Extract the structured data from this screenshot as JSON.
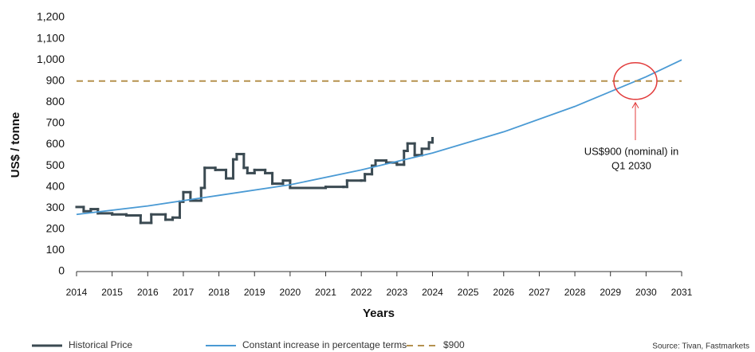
{
  "chart_data": {
    "type": "line",
    "y_label": "US$ / tonne",
    "x_label": "Years",
    "source": "Source: Tivan, Fastmarkets",
    "xlim": [
      2014,
      2031
    ],
    "xticks": [
      2014,
      2015,
      2016,
      2017,
      2018,
      2019,
      2020,
      2021,
      2022,
      2023,
      2024,
      2025,
      2026,
      2027,
      2028,
      2029,
      2030,
      2031
    ],
    "ylim": [
      0,
      1200
    ],
    "yticks": [
      0,
      100,
      200,
      300,
      400,
      500,
      600,
      700,
      800,
      900,
      {
        "value": 1000,
        "label": "1,000"
      },
      {
        "value": 1100,
        "label": "1,100"
      },
      {
        "value": 1200,
        "label": "1,200"
      }
    ],
    "grid": false,
    "legend": "bottom",
    "series": [
      {
        "name": "Historical Price",
        "color": "#3b4a52",
        "step": true,
        "dash": false,
        "x": [
          2014.0,
          2014.2,
          2014.4,
          2014.6,
          2015.0,
          2015.4,
          2015.8,
          2016.1,
          2016.5,
          2016.7,
          2016.9,
          2017.0,
          2017.2,
          2017.5,
          2017.6,
          2017.9,
          2018.2,
          2018.4,
          2018.5,
          2018.7,
          2018.8,
          2019.0,
          2019.3,
          2019.5,
          2019.8,
          2020.0,
          2020.5,
          2021.0,
          2021.5,
          2021.6,
          2022.0,
          2022.1,
          2022.3,
          2022.4,
          2022.7,
          2023.0,
          2023.2,
          2023.3,
          2023.5,
          2023.7,
          2023.9,
          2024.0
        ],
        "values": [
          305,
          285,
          295,
          275,
          270,
          265,
          230,
          270,
          245,
          255,
          330,
          375,
          335,
          395,
          490,
          480,
          440,
          530,
          555,
          490,
          465,
          480,
          465,
          415,
          430,
          395,
          395,
          400,
          400,
          430,
          430,
          460,
          500,
          525,
          515,
          505,
          570,
          605,
          550,
          580,
          610,
          630
        ]
      },
      {
        "name": "Constant increase in percentage terms",
        "color": "#4a9ad4",
        "step": false,
        "dash": false,
        "x": [
          2014,
          2016,
          2018,
          2020,
          2022,
          2024,
          2026,
          2028,
          2030,
          2031
        ],
        "values": [
          270,
          310,
          360,
          410,
          480,
          560,
          660,
          780,
          920,
          1000
        ]
      },
      {
        "name": "$900",
        "color": "#b5924f",
        "step": false,
        "dash": true,
        "x": [
          2014,
          2031
        ],
        "values": [
          900,
          900
        ]
      }
    ],
    "annotation": {
      "text": [
        "US$900 (nominal) in",
        "Q1 2030"
      ],
      "x": 2029.7,
      "y": 900,
      "color": "#e23b3b"
    }
  }
}
